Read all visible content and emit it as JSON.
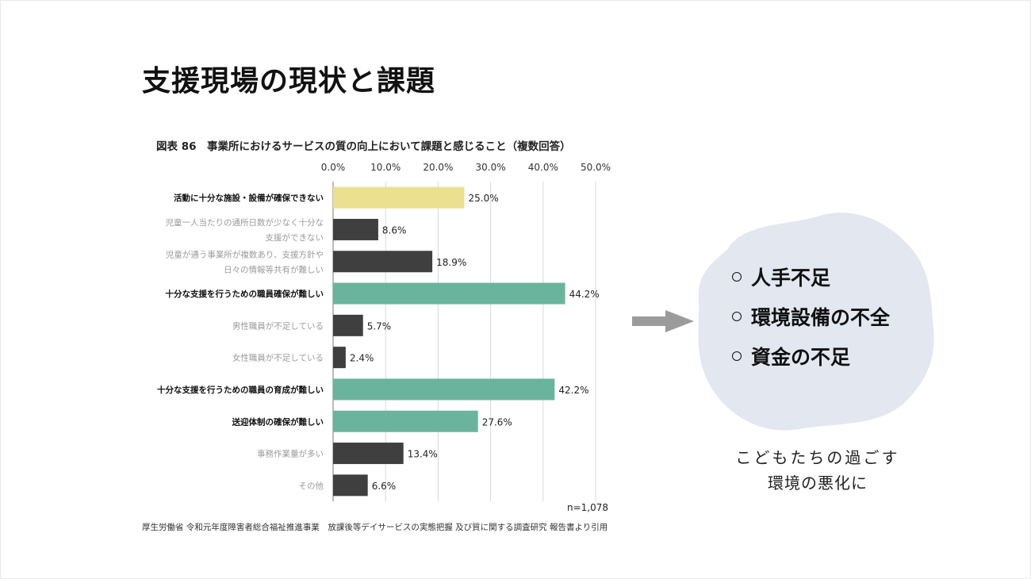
{
  "slide": {
    "title": "支援現場の現状と課題",
    "footnote": "厚生労働省 令和元年度障害者総合福祉推進事業　放課後等デイサービスの実態把握 及び質に関する調査研究 報告書より引用"
  },
  "chart_data": {
    "type": "bar",
    "orientation": "horizontal",
    "title": "図表 86　事業所におけるサービスの質の向上において課題と感じること（複数回答）",
    "xlim": [
      0,
      50
    ],
    "x_ticks": [
      "0.0%",
      "10.0%",
      "20.0%",
      "30.0%",
      "40.0%",
      "50.0%"
    ],
    "x_tick_values": [
      0,
      10,
      20,
      30,
      40,
      50
    ],
    "categories": [
      [
        "活動に十分な施設・設備が確保できない"
      ],
      [
        "児童一人当たりの通所日数が少なく十分な",
        "支援ができない"
      ],
      [
        "児童が通う事業所が複数あり、支援方針や",
        "日々の情報等共有が難しい"
      ],
      [
        "十分な支援を行うための職員確保が難しい"
      ],
      [
        "男性職員が不足している"
      ],
      [
        "女性職員が不足している"
      ],
      [
        "十分な支援を行うための職員の育成が難しい"
      ],
      [
        "送迎体制の確保が難しい"
      ],
      [
        "事務作業量が多い"
      ],
      [
        "その他"
      ]
    ],
    "values": [
      25.0,
      8.6,
      18.9,
      44.2,
      5.7,
      2.4,
      42.2,
      27.6,
      13.4,
      6.6
    ],
    "value_labels": [
      "25.0%",
      "8.6%",
      "18.9%",
      "44.2%",
      "5.7%",
      "2.4%",
      "42.2%",
      "27.6%",
      "13.4%",
      "6.6%"
    ],
    "highlight": [
      "yellow",
      "none",
      "none",
      "green",
      "none",
      "none",
      "green",
      "green",
      "none",
      "none"
    ],
    "sample_size": "n=1,078",
    "colors": {
      "yellow": "#ebe08f",
      "green": "#6ab49e",
      "none": "#3f3f3f",
      "label_emphasis": "#111111",
      "label_muted": "#9a9a9a",
      "grid": "#d9d9d9"
    }
  },
  "callout": {
    "items": [
      "人手不足",
      "環境設備の不全",
      "資金の不足"
    ],
    "caption_line1": "こどもたちの過ごす",
    "caption_line2": "環境の悪化に",
    "blob_color": "#e2e7f0",
    "arrow_color": "#9b9b9b"
  }
}
